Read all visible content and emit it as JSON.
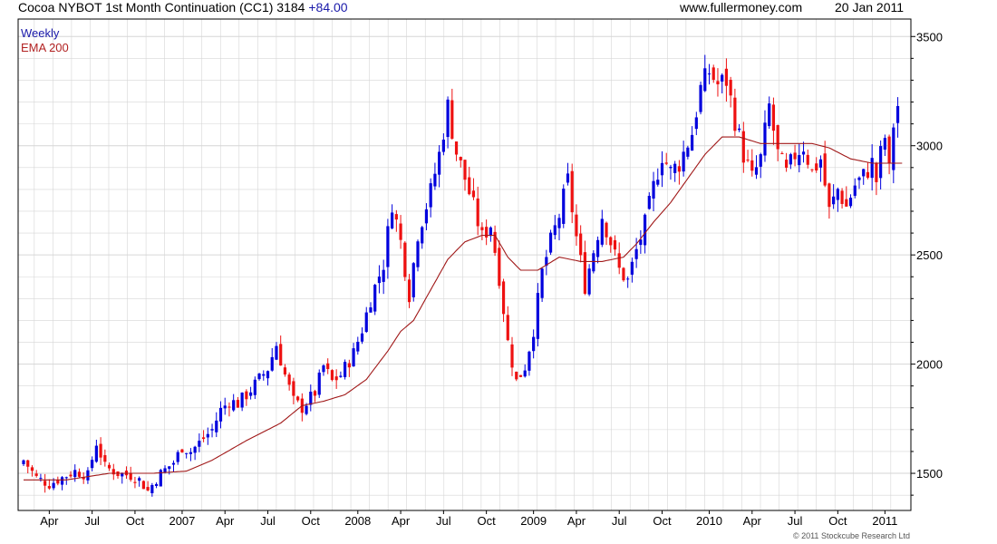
{
  "header": {
    "title": "Cocoa NYBOT 1st Month Continuation (CC1) 3184",
    "change": "+84.00",
    "site": "www.fullermoney.com",
    "date": "20 Jan 2011"
  },
  "legend": {
    "weekly": "Weekly",
    "ema": "EMA 200"
  },
  "copyright": "© 2011 Stockcube Research Ltd",
  "colors": {
    "up": "#0000dd",
    "down": "#ee1111",
    "ema": "#a01818",
    "grid": "#d6d6d6",
    "frame": "#000000"
  },
  "chart_data": {
    "type": "candlestick",
    "period": "Weekly",
    "ylim": [
      1330,
      3580
    ],
    "ylabels": [
      1500,
      2000,
      2500,
      3000,
      3500
    ],
    "grid": true,
    "xlim": [
      0,
      206
    ],
    "xticks": [
      {
        "label": "Apr",
        "x": 6
      },
      {
        "label": "Jul",
        "x": 16
      },
      {
        "label": "Oct",
        "x": 26
      },
      {
        "label": "2007",
        "x": 37
      },
      {
        "label": "Apr",
        "x": 47
      },
      {
        "label": "Jul",
        "x": 57
      },
      {
        "label": "Oct",
        "x": 67
      },
      {
        "label": "2008",
        "x": 78
      },
      {
        "label": "Apr",
        "x": 88
      },
      {
        "label": "Jul",
        "x": 98
      },
      {
        "label": "Oct",
        "x": 108
      },
      {
        "label": "2009",
        "x": 119
      },
      {
        "label": "Apr",
        "x": 129
      },
      {
        "label": "Jul",
        "x": 139
      },
      {
        "label": "Oct",
        "x": 149
      },
      {
        "label": "2010",
        "x": 160
      },
      {
        "label": "Apr",
        "x": 170
      },
      {
        "label": "Jul",
        "x": 180
      },
      {
        "label": "Oct",
        "x": 190
      },
      {
        "label": "2011",
        "x": 201
      }
    ],
    "close_path": [
      [
        0,
        1560
      ],
      [
        3,
        1480
      ],
      [
        6,
        1450
      ],
      [
        9,
        1480
      ],
      [
        12,
        1510
      ],
      [
        15,
        1490
      ],
      [
        17,
        1640
      ],
      [
        19,
        1530
      ],
      [
        22,
        1500
      ],
      [
        25,
        1490
      ],
      [
        27,
        1470
      ],
      [
        29,
        1420
      ],
      [
        32,
        1500
      ],
      [
        35,
        1550
      ],
      [
        37,
        1620
      ],
      [
        39,
        1600
      ],
      [
        41,
        1640
      ],
      [
        44,
        1700
      ],
      [
        46,
        1790
      ],
      [
        48,
        1830
      ],
      [
        50,
        1820
      ],
      [
        52,
        1860
      ],
      [
        55,
        1930
      ],
      [
        57,
        1980
      ],
      [
        59,
        2090
      ],
      [
        61,
        1950
      ],
      [
        63,
        1830
      ],
      [
        65,
        1800
      ],
      [
        68,
        1870
      ],
      [
        70,
        1990
      ],
      [
        72,
        1920
      ],
      [
        74,
        1950
      ],
      [
        77,
        2050
      ],
      [
        79,
        2160
      ],
      [
        81,
        2300
      ],
      [
        84,
        2460
      ],
      [
        86,
        2740
      ],
      [
        88,
        2560
      ],
      [
        90,
        2320
      ],
      [
        92,
        2600
      ],
      [
        95,
        2790
      ],
      [
        97,
        2960
      ],
      [
        99,
        3180
      ],
      [
        101,
        2970
      ],
      [
        103,
        2850
      ],
      [
        105,
        2720
      ],
      [
        107,
        2580
      ],
      [
        109,
        2640
      ],
      [
        111,
        2400
      ],
      [
        113,
        2100
      ],
      [
        115,
        1920
      ],
      [
        117,
        1990
      ],
      [
        119,
        2160
      ],
      [
        121,
        2420
      ],
      [
        123,
        2560
      ],
      [
        125,
        2680
      ],
      [
        127,
        2840
      ],
      [
        129,
        2580
      ],
      [
        131,
        2360
      ],
      [
        133,
        2520
      ],
      [
        135,
        2680
      ],
      [
        137,
        2560
      ],
      [
        139,
        2430
      ],
      [
        141,
        2380
      ],
      [
        143,
        2520
      ],
      [
        145,
        2640
      ],
      [
        147,
        2810
      ],
      [
        149,
        2960
      ],
      [
        151,
        2880
      ],
      [
        153,
        2920
      ],
      [
        156,
        3060
      ],
      [
        158,
        3260
      ],
      [
        160,
        3340
      ],
      [
        162,
        3280
      ],
      [
        164,
        3300
      ],
      [
        166,
        3120
      ],
      [
        168,
        2960
      ],
      [
        170,
        2850
      ],
      [
        172,
        2940
      ],
      [
        174,
        3180
      ],
      [
        176,
        2960
      ],
      [
        178,
        2870
      ],
      [
        180,
        2960
      ],
      [
        182,
        3000
      ],
      [
        184,
        2880
      ],
      [
        186,
        2940
      ],
      [
        188,
        2700
      ],
      [
        190,
        2800
      ],
      [
        192,
        2720
      ],
      [
        194,
        2820
      ],
      [
        196,
        2860
      ],
      [
        198,
        2920
      ],
      [
        199,
        2840
      ],
      [
        200,
        2960
      ],
      [
        201,
        3040
      ],
      [
        202,
        2880
      ],
      [
        203,
        3100
      ],
      [
        204,
        3184
      ]
    ],
    "ema_200": [
      [
        0,
        1470
      ],
      [
        10,
        1470
      ],
      [
        20,
        1500
      ],
      [
        30,
        1500
      ],
      [
        38,
        1510
      ],
      [
        44,
        1560
      ],
      [
        52,
        1650
      ],
      [
        60,
        1730
      ],
      [
        65,
        1810
      ],
      [
        70,
        1830
      ],
      [
        75,
        1860
      ],
      [
        80,
        1930
      ],
      [
        85,
        2060
      ],
      [
        88,
        2150
      ],
      [
        91,
        2200
      ],
      [
        95,
        2340
      ],
      [
        99,
        2480
      ],
      [
        103,
        2560
      ],
      [
        107,
        2590
      ],
      [
        110,
        2590
      ],
      [
        113,
        2490
      ],
      [
        116,
        2430
      ],
      [
        120,
        2430
      ],
      [
        125,
        2490
      ],
      [
        130,
        2470
      ],
      [
        135,
        2470
      ],
      [
        140,
        2490
      ],
      [
        143,
        2550
      ],
      [
        147,
        2650
      ],
      [
        151,
        2740
      ],
      [
        155,
        2850
      ],
      [
        159,
        2960
      ],
      [
        163,
        3040
      ],
      [
        167,
        3040
      ],
      [
        172,
        3010
      ],
      [
        178,
        3010
      ],
      [
        184,
        3010
      ],
      [
        188,
        2990
      ],
      [
        193,
        2940
      ],
      [
        198,
        2920
      ],
      [
        205,
        2920
      ]
    ]
  }
}
